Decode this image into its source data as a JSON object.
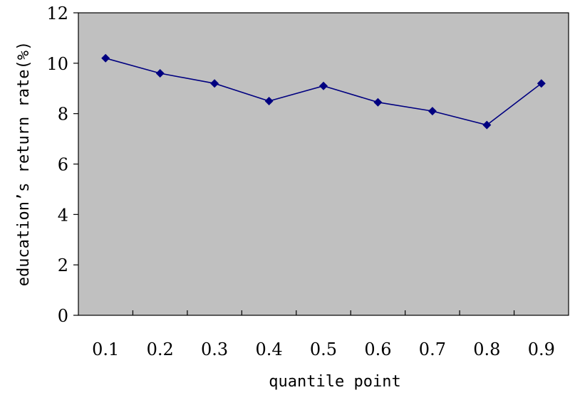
{
  "chart_data": {
    "type": "line",
    "title": "",
    "xlabel": "quantile point",
    "ylabel": "education’s return rate(%)",
    "categories": [
      "0.1",
      "0.2",
      "0.3",
      "0.4",
      "0.5",
      "0.6",
      "0.7",
      "0.8",
      "0.9"
    ],
    "series": [
      {
        "values": [
          10.2,
          9.6,
          9.2,
          8.5,
          9.1,
          8.45,
          8.1,
          7.55,
          9.2
        ]
      }
    ],
    "ylim": [
      0,
      12
    ],
    "yticks": [
      0,
      2,
      4,
      6,
      8,
      10,
      12
    ],
    "grid": false,
    "legend": "none",
    "marker": "diamond",
    "colors": {
      "plot_background": "#c0c0c0",
      "series": "#000080",
      "axis": "#000000"
    }
  }
}
